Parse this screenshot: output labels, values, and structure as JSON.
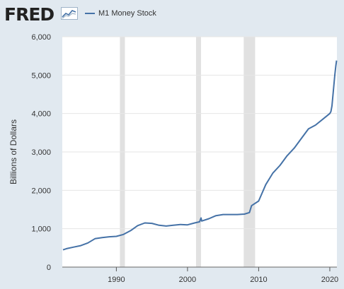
{
  "header": {
    "logo": "FRED",
    "legend_label": "M1 Money Stock"
  },
  "chart_data": {
    "type": "line",
    "title": "",
    "ylabel": "Billions of Dollars",
    "xlabel": "",
    "xlim": [
      1982.4,
      2021.0
    ],
    "ylim": [
      0,
      6000
    ],
    "y_ticks": [
      0,
      1000,
      2000,
      3000,
      4000,
      5000,
      6000
    ],
    "y_tick_labels": [
      "0",
      "1,000",
      "2,000",
      "3,000",
      "4,000",
      "5,000",
      "6,000"
    ],
    "x_ticks": [
      1990,
      2000,
      2010,
      2020
    ],
    "x_tick_labels": [
      "1990",
      "2000",
      "2010",
      "2020"
    ],
    "recessions": [
      [
        1990.5,
        1991.2
      ],
      [
        2001.2,
        2001.9
      ],
      [
        2007.9,
        2009.5
      ]
    ],
    "grid": "horizontal",
    "series": [
      {
        "name": "M1 Money Stock",
        "color": "#4572a7",
        "x": [
          1982.5,
          1983.0,
          1984.0,
          1985.0,
          1986.0,
          1987.0,
          1988.0,
          1989.0,
          1990.0,
          1991.0,
          1992.0,
          1993.0,
          1994.0,
          1995.0,
          1996.0,
          1997.0,
          1998.0,
          1999.0,
          2000.0,
          2001.0,
          2001.7,
          2001.9,
          2002.0,
          2003.0,
          2004.0,
          2005.0,
          2006.0,
          2007.0,
          2008.0,
          2008.7,
          2009.0,
          2010.0,
          2011.0,
          2012.0,
          2013.0,
          2014.0,
          2015.0,
          2016.0,
          2017.0,
          2018.0,
          2019.0,
          2020.0,
          2020.15,
          2020.3,
          2020.5,
          2020.7,
          2020.85,
          2020.95
        ],
        "values": [
          450,
          480,
          520,
          560,
          630,
          740,
          770,
          790,
          800,
          850,
          950,
          1080,
          1150,
          1140,
          1090,
          1070,
          1090,
          1110,
          1100,
          1150,
          1180,
          1280,
          1200,
          1260,
          1340,
          1370,
          1370,
          1370,
          1380,
          1420,
          1600,
          1720,
          2150,
          2450,
          2650,
          2900,
          3100,
          3350,
          3600,
          3700,
          3850,
          4000,
          4050,
          4200,
          4600,
          5000,
          5250,
          5380
        ]
      }
    ]
  }
}
